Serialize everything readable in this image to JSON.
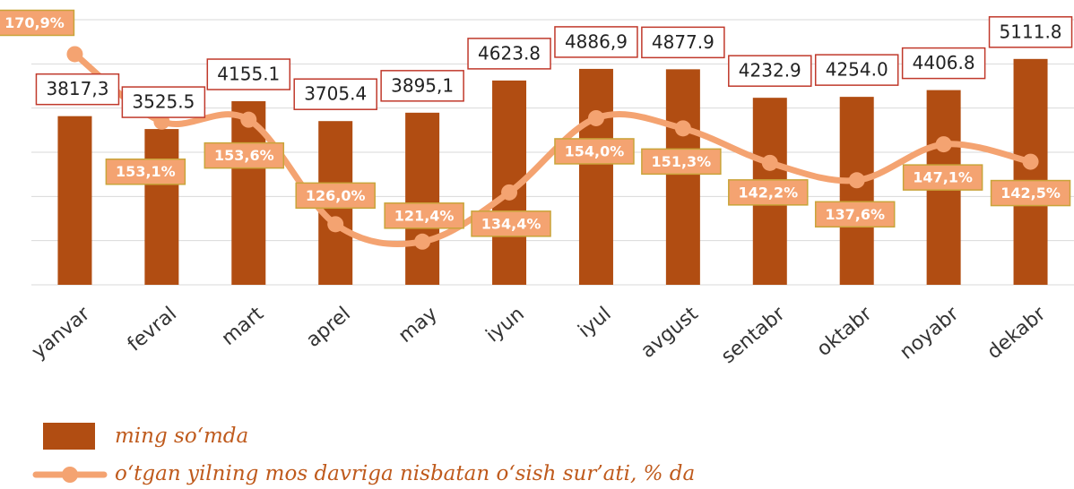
{
  "chart_data": {
    "type": "bar-line",
    "categories": [
      "yanvar",
      "fevral",
      "mart",
      "aprel",
      "may",
      "iyun",
      "iyul",
      "avgust",
      "sentabr",
      "oktabr",
      "noyabr",
      "dekabr"
    ],
    "series": [
      {
        "name": "ming so‘mda",
        "type": "bar",
        "color": "#b14d12",
        "values": [
          3817.3,
          3525.5,
          4155.1,
          3705.4,
          3895.1,
          4623.8,
          4886.9,
          4877.9,
          4232.9,
          4254.0,
          4406.8,
          5111.8
        ],
        "value_labels": [
          "3817,3",
          "3525.5",
          "4155.1",
          "3705.4",
          "3895,1",
          "4623.8",
          "4886,9",
          "4877.9",
          "4232.9",
          "4254.0",
          "4406.8",
          "5111.8"
        ]
      },
      {
        "name": "o‘tgan yilning mos davriga nisbatan o‘sish sur’ati, % da",
        "type": "line",
        "axis": "y2",
        "color": "#f4a371",
        "values": [
          170.9,
          153.1,
          153.6,
          126.0,
          121.4,
          134.4,
          154.0,
          151.3,
          142.2,
          137.6,
          147.1,
          142.5
        ],
        "value_labels": [
          "170,9%",
          "153,1%",
          "153,6%",
          "126,0%",
          "121,4%",
          "134,4%",
          "154,0%",
          "151,3%",
          "142,2%",
          "137,6%",
          "147,1%",
          "142,5%"
        ]
      }
    ],
    "ylim": [
      0,
      6000
    ],
    "yticks": [
      0,
      1000,
      2000,
      3000,
      4000,
      5000,
      6000
    ],
    "y2lim": [
      110,
      180
    ],
    "grid": true
  }
}
